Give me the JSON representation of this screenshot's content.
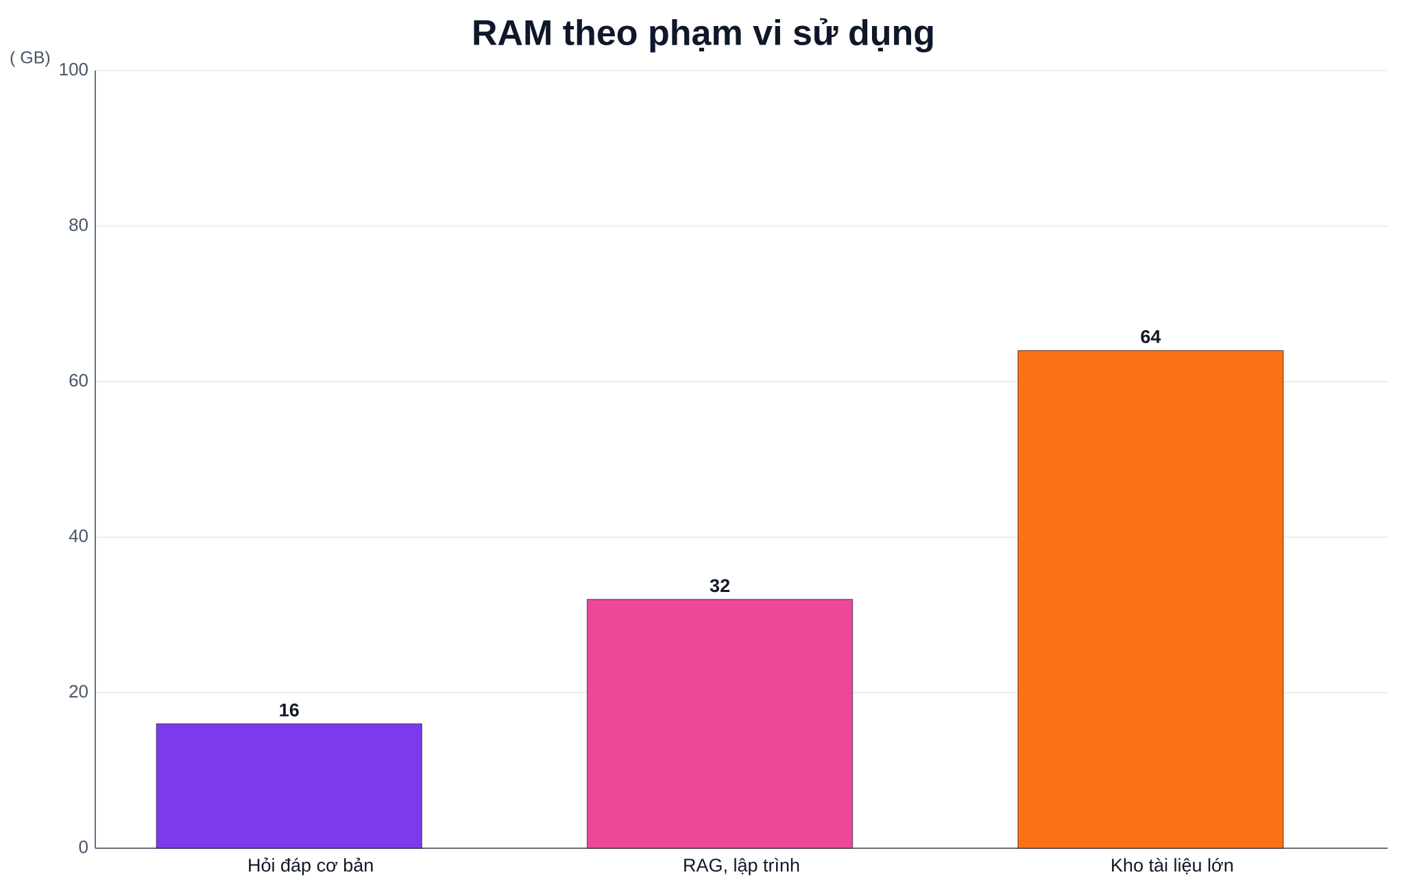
{
  "chart_data": {
    "type": "bar",
    "title": "RAM theo phạm vi sử dụng",
    "y_label": "( GB)",
    "categories": [
      "Hỏi đáp cơ bản",
      "RAG, lập trình",
      "Kho tài liệu lớn"
    ],
    "values": [
      16,
      32,
      64
    ],
    "colors": [
      "#7c3aed",
      "#ec4899",
      "#f97316"
    ],
    "ylim": [
      0,
      100
    ],
    "yticks": [
      0,
      20,
      40,
      60,
      80,
      100
    ],
    "grid": true
  }
}
